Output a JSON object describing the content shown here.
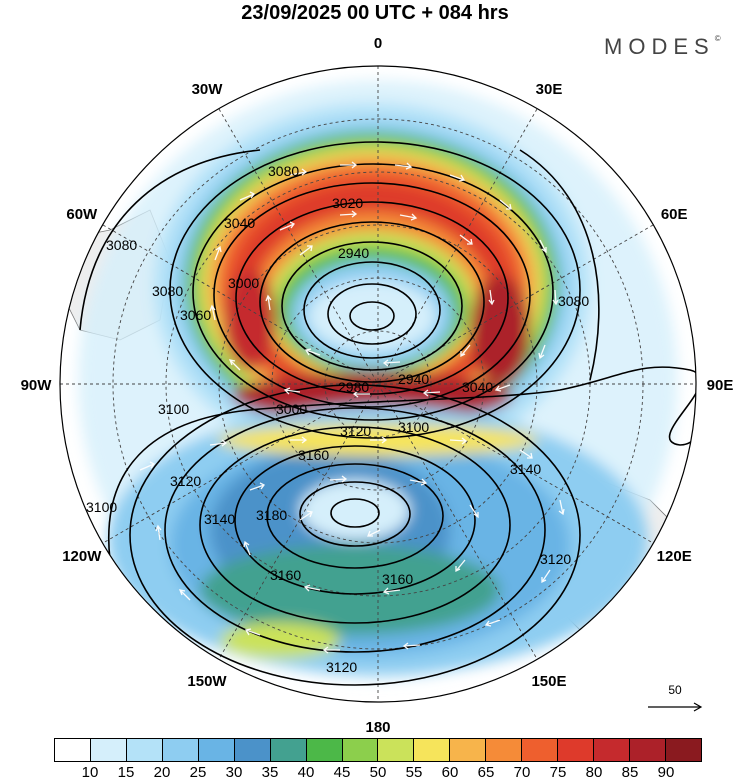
{
  "title": "23/09/2025  00 UTC  + 084 hrs",
  "logo": "MODES",
  "logo_mark": "©",
  "longitude_labels": [
    {
      "text": "0",
      "lon": 0
    },
    {
      "text": "30E",
      "lon": 30
    },
    {
      "text": "60E",
      "lon": 60
    },
    {
      "text": "90E",
      "lon": 90
    },
    {
      "text": "120E",
      "lon": 120
    },
    {
      "text": "150E",
      "lon": 150
    },
    {
      "text": "180",
      "lon": 180
    },
    {
      "text": "150W",
      "lon": -150
    },
    {
      "text": "120W",
      "lon": -120
    },
    {
      "text": "90W",
      "lon": -90
    },
    {
      "text": "60W",
      "lon": -60
    },
    {
      "text": "30W",
      "lon": -30
    }
  ],
  "contour_labels": [
    "3080",
    "3040",
    "3020",
    "2940",
    "3000",
    "2980",
    "2940",
    "3040",
    "3080",
    "3080",
    "3080",
    "3060",
    "3100",
    "3000",
    "3120",
    "3100",
    "3160",
    "3120",
    "3140",
    "3180",
    "3140",
    "3100",
    "3160",
    "3160",
    "3120",
    "3120"
  ],
  "reference_vector": "50",
  "colorbar": {
    "colors": [
      "#ffffff",
      "#d5effb",
      "#b4e2f8",
      "#8ecdf1",
      "#69b4e5",
      "#4b92c9",
      "#43a190",
      "#4cb848",
      "#8ccf4c",
      "#cbe25a",
      "#f6e45b",
      "#f7b44b",
      "#f58b38",
      "#ee5f2e",
      "#de3a2b",
      "#c52a2d",
      "#ac2129",
      "#8a1a1f"
    ],
    "labels": [
      "10",
      "15",
      "20",
      "25",
      "30",
      "35",
      "40",
      "45",
      "50",
      "55",
      "60",
      "65",
      "70",
      "75",
      "80",
      "85",
      "90"
    ]
  }
}
